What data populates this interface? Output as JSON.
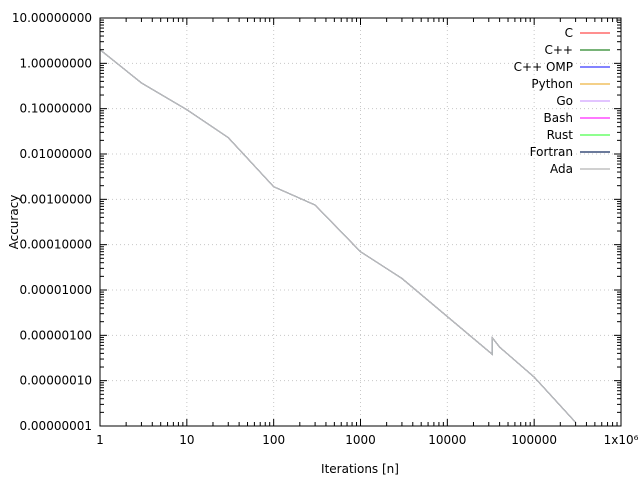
{
  "chart_data": {
    "type": "line",
    "xlabel": "Iterations [n]",
    "ylabel": "Accuracy",
    "x_scale": "log",
    "y_scale": "log",
    "xlim": [
      1,
      1000000
    ],
    "ylim": [
      1e-08,
      10
    ],
    "grid": true,
    "legend_position": "top-right",
    "x_tick_labels": [
      "1",
      "10",
      "100",
      "1000",
      "10000",
      "100000",
      "1x10⁶"
    ],
    "y_tick_labels": [
      "10.00000000",
      "1.00000000",
      "0.10000000",
      "0.01000000",
      "0.00100000",
      "0.00010000",
      "0.00001000",
      "0.00000100",
      "0.00000010",
      "0.00000001"
    ],
    "series": [
      {
        "name": "C",
        "color": "#ff6a6a",
        "x": [
          1,
          3,
          10,
          30,
          100,
          300,
          1000,
          3000,
          33000,
          33001,
          40000,
          100000,
          300000
        ],
        "y": [
          2.0,
          0.37,
          0.095,
          0.023,
          0.0019,
          0.00075,
          7e-05,
          1.8e-05,
          3.8e-07,
          8.8e-07,
          5.5e-07,
          1.2e-07,
          1.2e-08
        ]
      },
      {
        "name": "C++",
        "color": "#4c9a4c",
        "x": [
          1,
          3,
          10,
          30,
          100,
          300,
          1000,
          3000,
          33000,
          33001,
          40000,
          100000,
          300000
        ],
        "y": [
          2.0,
          0.37,
          0.095,
          0.023,
          0.0019,
          0.00075,
          7e-05,
          1.8e-05,
          3.8e-07,
          8.8e-07,
          5.5e-07,
          1.2e-07,
          1.2e-08
        ]
      },
      {
        "name": "C++ OMP",
        "color": "#5a5aff",
        "x": [
          1,
          3,
          10,
          30,
          100,
          300,
          1000,
          3000,
          33000,
          33001,
          40000,
          100000,
          300000
        ],
        "y": [
          2.0,
          0.37,
          0.095,
          0.023,
          0.0019,
          0.00075,
          7e-05,
          1.8e-05,
          3.8e-07,
          8.8e-07,
          5.5e-07,
          1.2e-07,
          1.2e-08
        ]
      },
      {
        "name": "Python",
        "color": "#f0c060",
        "x": [
          1,
          3,
          10,
          30,
          100,
          300,
          1000,
          3000,
          33000,
          33001,
          40000,
          100000,
          300000
        ],
        "y": [
          2.0,
          0.37,
          0.095,
          0.023,
          0.0019,
          0.00075,
          7e-05,
          1.8e-05,
          3.8e-07,
          8.8e-07,
          5.5e-07,
          1.2e-07,
          1.2e-08
        ]
      },
      {
        "name": "Go",
        "color": "#d8b0ff",
        "x": [
          1,
          3,
          10,
          30,
          100,
          300,
          1000,
          3000,
          33000,
          33001,
          40000,
          100000,
          300000
        ],
        "y": [
          2.0,
          0.37,
          0.095,
          0.023,
          0.0019,
          0.00075,
          7e-05,
          1.8e-05,
          3.8e-07,
          8.8e-07,
          5.5e-07,
          1.2e-07,
          1.2e-08
        ]
      },
      {
        "name": "Bash",
        "color": "#ff4cff",
        "x": [
          1,
          3,
          10,
          30,
          100,
          300,
          1000,
          3000,
          33000,
          33001,
          40000,
          100000,
          300000
        ],
        "y": [
          2.0,
          0.37,
          0.095,
          0.023,
          0.0019,
          0.00075,
          7e-05,
          1.8e-05,
          3.8e-07,
          8.8e-07,
          5.5e-07,
          1.2e-07,
          1.2e-08
        ]
      },
      {
        "name": "Rust",
        "color": "#6aff6a",
        "x": [
          1,
          3,
          10,
          30,
          100,
          300,
          1000,
          3000,
          33000,
          33001,
          40000,
          100000,
          300000
        ],
        "y": [
          2.0,
          0.37,
          0.095,
          0.023,
          0.0019,
          0.00075,
          7e-05,
          1.8e-05,
          3.8e-07,
          8.8e-07,
          5.5e-07,
          1.2e-07,
          1.2e-08
        ]
      },
      {
        "name": "Fortran",
        "color": "#3a4f7a",
        "x": [
          1,
          3,
          10,
          30,
          100,
          300,
          1000,
          3000,
          33000,
          33001,
          40000,
          100000,
          300000
        ],
        "y": [
          2.0,
          0.37,
          0.095,
          0.023,
          0.0019,
          0.00075,
          7e-05,
          1.8e-05,
          3.8e-07,
          8.8e-07,
          5.5e-07,
          1.2e-07,
          1.2e-08
        ]
      },
      {
        "name": "Ada",
        "color": "#c0c0c0",
        "x": [
          1,
          3,
          10,
          30,
          100,
          300,
          1000,
          3000,
          33000,
          33001,
          40000,
          100000,
          300000
        ],
        "y": [
          2.0,
          0.37,
          0.095,
          0.023,
          0.0019,
          0.00075,
          7e-05,
          1.8e-05,
          3.8e-07,
          8.8e-07,
          5.5e-07,
          1.2e-07,
          1.2e-08
        ]
      }
    ]
  }
}
